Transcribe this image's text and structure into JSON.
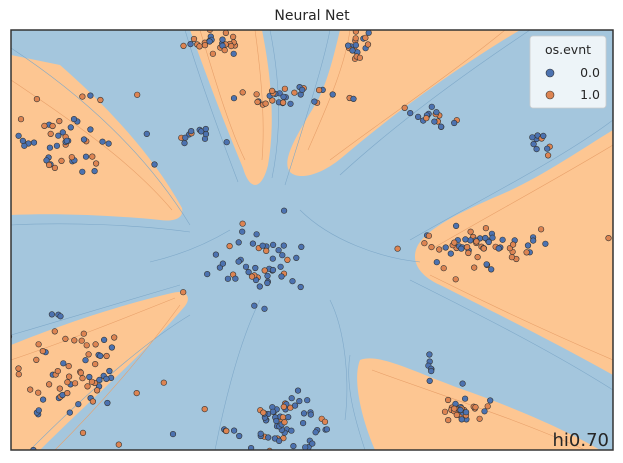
{
  "chart_data": {
    "type": "scatter",
    "title": "Neural Net",
    "subtitle": "",
    "xlabel": "",
    "ylabel": "",
    "grid": false,
    "ticks": "none",
    "background": "decision-boundary-contours",
    "legend": {
      "title": "os.evnt",
      "placement": "top-right",
      "entries": [
        {
          "label": "0.0",
          "color": "#4c72b0"
        },
        {
          "label": "1.0",
          "color": "#dd8452"
        }
      ]
    },
    "annotation": "hi0.70",
    "colors": {
      "class_0_region": "#a4c6dd",
      "class_1_region": "#fdc692",
      "class_0_point": "#4c72b0",
      "class_1_point": "#dd8452",
      "point_edge": "#333333",
      "frame": "#333333"
    },
    "xlim": [
      0,
      100
    ],
    "ylim": [
      0,
      100
    ],
    "clusters": [
      {
        "x": 34,
        "y": 97,
        "sx": 2.6,
        "sy": 1.5,
        "n": 26,
        "frac1": 0.55
      },
      {
        "x": 57.5,
        "y": 97,
        "sx": 1.3,
        "sy": 1.6,
        "n": 18,
        "frac1": 0.5
      },
      {
        "x": 45,
        "y": 83.5,
        "sx": 4.5,
        "sy": 1.5,
        "n": 32,
        "frac1": 0.35
      },
      {
        "x": 31,
        "y": 75.5,
        "sx": 2.4,
        "sy": 1.0,
        "n": 12,
        "frac1": 0.1
      },
      {
        "x": 8,
        "y": 74,
        "sx": 5.5,
        "sy": 5.5,
        "n": 55,
        "frac1": 0.4
      },
      {
        "x": 70,
        "y": 79,
        "sx": 1.8,
        "sy": 1.2,
        "n": 18,
        "frac1": 0.25
      },
      {
        "x": 88,
        "y": 74.5,
        "sx": 1.5,
        "sy": 1.8,
        "n": 10,
        "frac1": 0.4
      },
      {
        "x": 41.5,
        "y": 44.5,
        "sx": 3.8,
        "sy": 4.5,
        "n": 52,
        "frac1": 0.2
      },
      {
        "x": 76,
        "y": 48,
        "sx": 5.5,
        "sy": 2.8,
        "n": 62,
        "frac1": 0.5
      },
      {
        "x": 9,
        "y": 18.5,
        "sx": 5.0,
        "sy": 6.5,
        "n": 72,
        "frac1": 0.5
      },
      {
        "x": 45,
        "y": 6.5,
        "sx": 4.5,
        "sy": 3.2,
        "n": 68,
        "frac1": 0.2
      },
      {
        "x": 74.5,
        "y": 9.5,
        "sx": 2.0,
        "sy": 2.0,
        "n": 32,
        "frac1": 0.55
      },
      {
        "x": 69.5,
        "y": 20,
        "sx": 0.3,
        "sy": 2.0,
        "n": 7,
        "frac1": 0.3
      },
      {
        "x": 99,
        "y": 50.5,
        "sx": 0.2,
        "sy": 0.2,
        "n": 1,
        "frac1": 1.0
      }
    ]
  }
}
